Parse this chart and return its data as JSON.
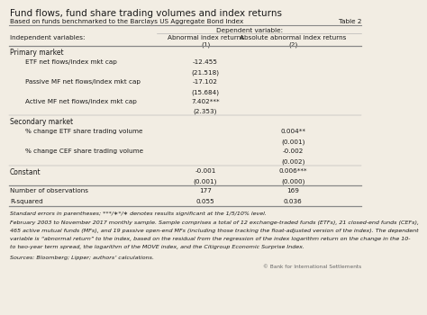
{
  "title": "Fund flows, fund share trading volumes and index returns",
  "subtitle": "Based on funds benchmarked to the Barclays US Aggregate Bond Index",
  "table_label": "Table 2",
  "dep_var_header": "Dependent variable:",
  "col1_header": "Abnormal index returns",
  "col2_header": "Absolute abnormal index returns",
  "col1_num": "(1)",
  "col2_num": "(2)",
  "ind_var_label": "Independent variables:",
  "primary_section": "Primary market",
  "secondary_section": "Secondary market",
  "primary_rows": [
    {
      "label": "ETF net flows/index mkt cap",
      "c1": "-12.455",
      "c2": ""
    },
    {
      "label": "",
      "c1": "(21.518)",
      "c2": ""
    },
    {
      "label": "Passive MF net flows/index mkt cap",
      "c1": "-17.102",
      "c2": ""
    },
    {
      "label": "",
      "c1": "(15.684)",
      "c2": ""
    },
    {
      "label": "Active MF net flows/index mkt cap",
      "c1": "7.402***",
      "c2": ""
    },
    {
      "label": "",
      "c1": "(2.353)",
      "c2": ""
    }
  ],
  "secondary_rows": [
    {
      "label": "% change ETF share trading volume",
      "c1": "",
      "c2": "0.004**"
    },
    {
      "label": "",
      "c1": "",
      "c2": "(0.001)"
    },
    {
      "label": "% change CEF share trading volume",
      "c1": "",
      "c2": "-0.002"
    },
    {
      "label": "",
      "c1": "",
      "c2": "(0.002)"
    }
  ],
  "constant_label": "Constant",
  "constant_c1a": "-0.001",
  "constant_c2a": "0.006***",
  "constant_c1b": "(0.001)",
  "constant_c2b": "(0.000)",
  "stat_rows": [
    {
      "label": "Number of observations",
      "c1": "177",
      "c2": "169"
    },
    {
      "label": "R-squared",
      "c1": "0.055",
      "c2": "0.036"
    }
  ],
  "fn1": "Standard errors in parentheses; ***/∗*/∗ denotes results significant at the 1/5/10% level.",
  "fn2a": "February 2003 to November 2017 monthly sample. Sample comprises a total of 12 exchange-traded funds (ETFs), 21 closed-end funds (CEFs),",
  "fn2b": "465 active mutual funds (MFs), and 19 passive open-end MFs (including those tracking the float-adjusted version of the index). The dependent",
  "fn2c": "variable is “abnormal return” to the index, based on the residual from the regression of the index logarithm return on the change in the 10-",
  "fn2d": "to two-year term spread, the logarithm of the MOVE index, and the Citigroup Economic Surprise Index.",
  "fn3": "Sources: Bloomberg; Lipper; authors’ calculations.",
  "copyright": "© Bank for International Settlements",
  "bg_color": "#f2ede3",
  "text_color": "#1a1a1a",
  "line_color": "#aaaaaa"
}
